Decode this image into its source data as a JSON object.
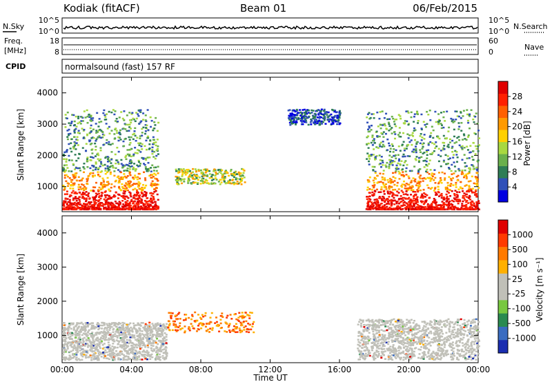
{
  "header": {
    "station": "Kodiak (fitACF)",
    "beam": "Beam 01",
    "date": "06/Feb/2015"
  },
  "panels": {
    "nsky": {
      "label": "N.Sky",
      "ticks": [
        "10^5",
        "10^0"
      ]
    },
    "nsearch": {
      "label": "N.Search",
      "ticks": [
        "10^5",
        "10^0"
      ]
    },
    "freq": {
      "label_line1": "Freq.",
      "label_line2": "[MHz]",
      "ticks": [
        "18",
        "8"
      ]
    },
    "nave": {
      "label": "Nave",
      "ticks": [
        "60",
        "0"
      ]
    },
    "cpid": {
      "label": "CPID",
      "text": "normalsound (fast) 157 RF"
    }
  },
  "colors": {
    "power_scale": [
      "#0000e0",
      "#3050b8",
      "#2e7d55",
      "#6ab04c",
      "#a8d840",
      "#ffd000",
      "#ff9a00",
      "#ff6000",
      "#ff2000",
      "#e00000"
    ],
    "velocity_scale": [
      "#1a2db0",
      "#3a6cc0",
      "#2a8a50",
      "#78c840",
      "#c0c0b8",
      "#c0c0b8",
      "#ffb000",
      "#ff7a00",
      "#ff3a00",
      "#e00000"
    ]
  },
  "chart_data": [
    {
      "type": "heatmap",
      "name": "power",
      "ylabel": "Slant Range [km]",
      "xlabel": "Time UT",
      "x_ticks": [
        "00:00",
        "04:00",
        "08:00",
        "12:00",
        "16:00",
        "20:00",
        "00:00"
      ],
      "y_ticks": [
        1000,
        2000,
        3000,
        4000
      ],
      "ylim": [
        200,
        4500
      ],
      "colorbar": {
        "label": "Power [dB]",
        "ticks": [
          "4",
          "8",
          "12",
          "16",
          "20",
          "24",
          "28"
        ]
      },
      "regions": [
        {
          "t0": 0.0,
          "t1": 5.5,
          "r0": 300,
          "r1": 3500,
          "level": "high"
        },
        {
          "t0": 6.5,
          "t1": 10.5,
          "r0": 1100,
          "r1": 1600,
          "level": "mid"
        },
        {
          "t0": 13.0,
          "t1": 16.0,
          "r0": 3000,
          "r1": 3500,
          "level": "low"
        },
        {
          "t0": 17.5,
          "t1": 24.0,
          "r0": 300,
          "r1": 3500,
          "level": "high"
        }
      ]
    },
    {
      "type": "heatmap",
      "name": "velocity",
      "ylabel": "Slant Range [km]",
      "xlabel": "Time UT",
      "x_ticks": [
        "00:00",
        "04:00",
        "08:00",
        "12:00",
        "16:00",
        "20:00",
        "00:00"
      ],
      "y_ticks": [
        1000,
        2000,
        3000,
        4000
      ],
      "ylim": [
        200,
        4500
      ],
      "colorbar": {
        "label": "Velocity [m s⁻¹]",
        "ticks": [
          "1000",
          "500",
          "100",
          "25",
          "-25",
          "-100",
          "-500",
          "-1000"
        ]
      },
      "regions": [
        {
          "t0": 0.0,
          "t1": 6.0,
          "r0": 300,
          "r1": 1400,
          "level": "ground"
        },
        {
          "t0": 6.0,
          "t1": 11.0,
          "r0": 1100,
          "r1": 1700,
          "level": "negative"
        },
        {
          "t0": 17.0,
          "t1": 24.0,
          "r0": 300,
          "r1": 1500,
          "level": "ground"
        }
      ]
    }
  ]
}
